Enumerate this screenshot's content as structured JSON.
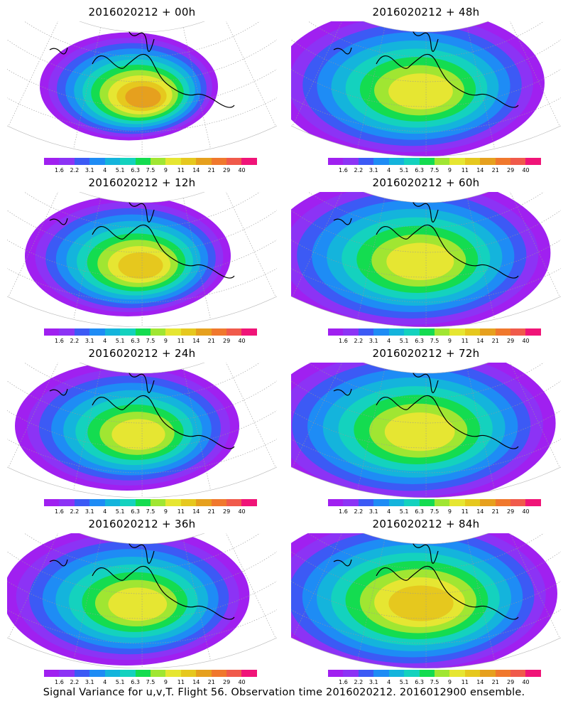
{
  "panels": [
    {
      "id": "p00",
      "title": "2016020212 + 00h",
      "spread": 0.35,
      "peak": 0.95
    },
    {
      "id": "p48",
      "title": "2016020212 + 48h",
      "spread": 0.85,
      "peak": 0.75
    },
    {
      "id": "p12",
      "title": "2016020212 + 12h",
      "spread": 0.5,
      "peak": 0.82
    },
    {
      "id": "p60",
      "title": "2016020212 + 60h",
      "spread": 0.92,
      "peak": 0.72
    },
    {
      "id": "p24",
      "title": "2016020212 + 24h",
      "spread": 0.6,
      "peak": 0.76
    },
    {
      "id": "p72",
      "title": "2016020212 + 72h",
      "spread": 0.98,
      "peak": 0.74
    },
    {
      "id": "p36",
      "title": "2016020212 + 36h",
      "spread": 0.72,
      "peak": 0.76
    },
    {
      "id": "p84",
      "title": "2016020212 + 84h",
      "spread": 1.0,
      "peak": 0.8
    }
  ],
  "colorbar": {
    "colors": [
      "#a020f0",
      "#8c33f5",
      "#3c5af5",
      "#1e8cf5",
      "#14b4dc",
      "#14d2be",
      "#14dc50",
      "#a0e632",
      "#e6e632",
      "#e6c81e",
      "#e6a01e",
      "#f0782d",
      "#f05a4b",
      "#f01478"
    ],
    "labels": [
      "1.6",
      "2.2",
      "3.1",
      "4",
      "5.1",
      "6.3",
      "7.5",
      "9",
      "11",
      "14",
      "21",
      "29",
      "40"
    ]
  },
  "footer": "Signal Variance for u,v,T. Flight 56. Observation time 2016020212. 2016012900 ensemble."
}
